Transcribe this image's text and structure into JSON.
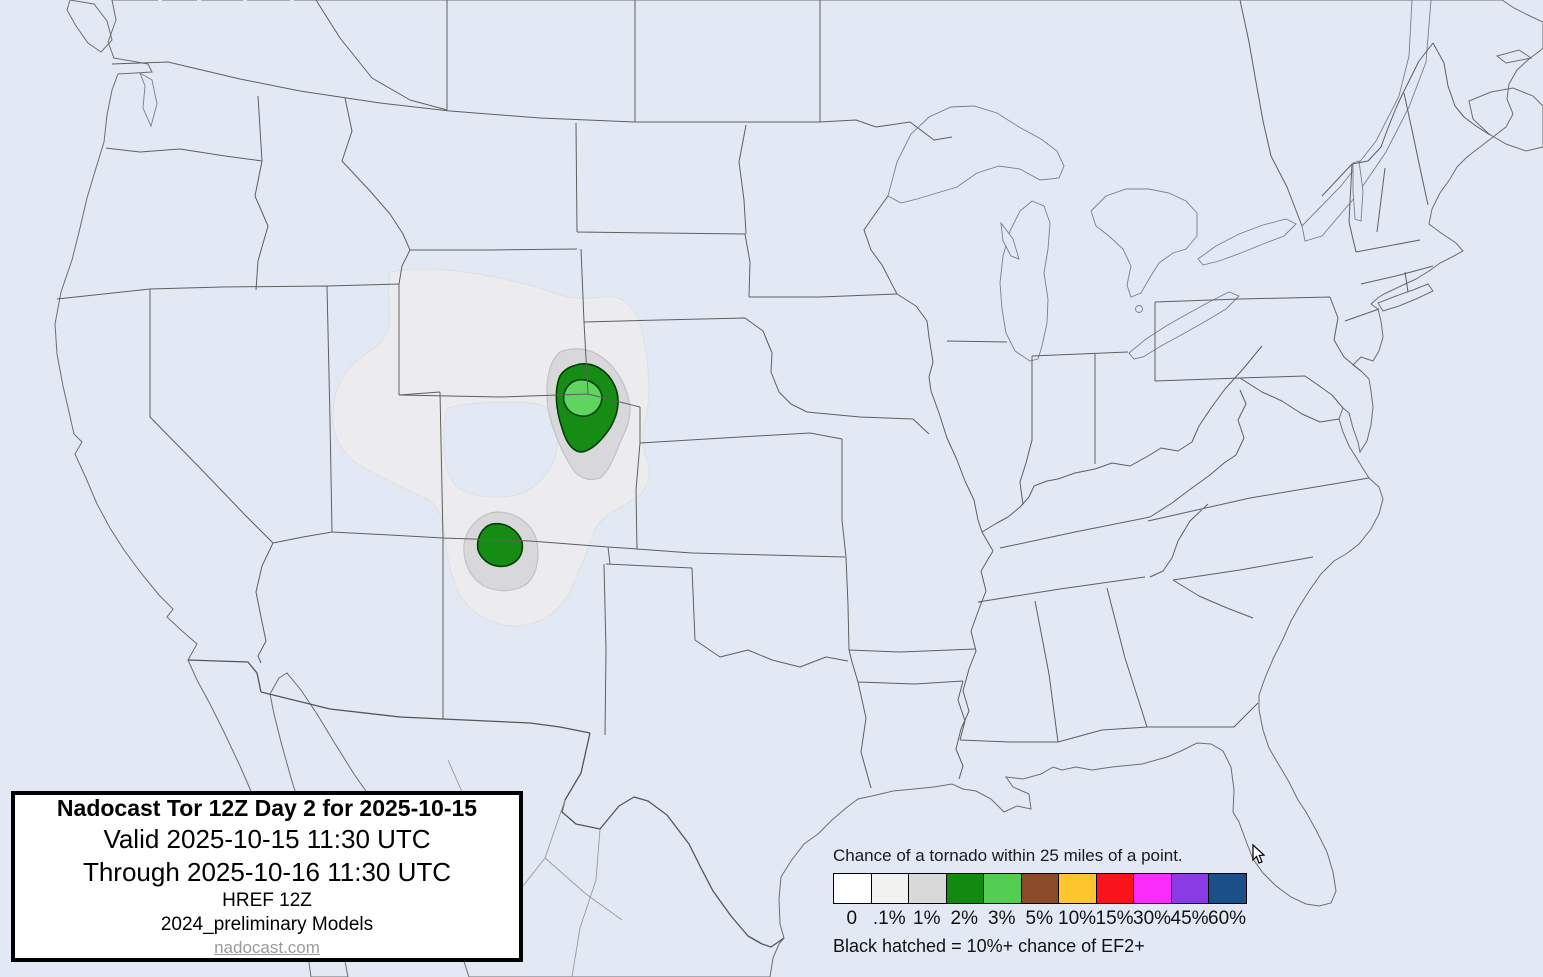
{
  "title_box": {
    "title": "Nadocast Tor 12Z Day 2 for 2025-10-15",
    "valid_line": "Valid 2025-10-15 11:30 UTC",
    "through_line": "Through 2025-10-16 11:30 UTC",
    "model_line": "HREF 12Z",
    "models_line": "2024_preliminary Models",
    "website": "nadocast.com"
  },
  "legend": {
    "title": "Chance of a tornado within 25 miles of a point.",
    "note": "Black hatched = 10%+ chance of EF2+",
    "items": [
      {
        "label": "0",
        "color": "#ffffff"
      },
      {
        "label": ".1%",
        "color": "#f2f2f0"
      },
      {
        "label": "1%",
        "color": "#d9d9d9"
      },
      {
        "label": "2%",
        "color": "#128a12"
      },
      {
        "label": "3%",
        "color": "#53ce53"
      },
      {
        "label": "5%",
        "color": "#8b4b2b"
      },
      {
        "label": "10%",
        "color": "#fdc62f"
      },
      {
        "label": "15%",
        "color": "#f8141a"
      },
      {
        "label": "30%",
        "color": "#f92cf9"
      },
      {
        "label": "45%",
        "color": "#8b3be3"
      },
      {
        "label": "60%",
        "color": "#1a4f87"
      }
    ]
  },
  "map": {
    "ocean_color": "#e3e8f5",
    "land_color": "#ffffff",
    "contour_levels": [
      {
        "level": ".1%",
        "color": "#ececee"
      },
      {
        "level": "1%",
        "color": "#d8d8da"
      },
      {
        "level": "2%",
        "color": "#158d15"
      },
      {
        "level": "3%",
        "color": "#5fd45f"
      }
    ]
  }
}
